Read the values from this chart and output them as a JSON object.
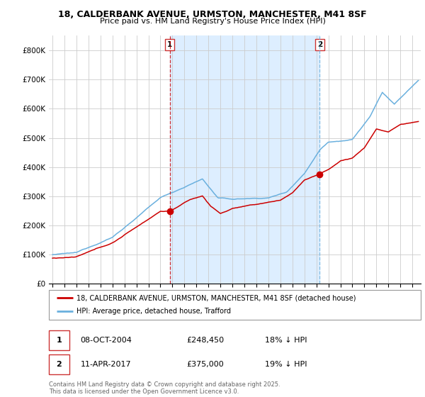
{
  "title1": "18, CALDERBANK AVENUE, URMSTON, MANCHESTER, M41 8SF",
  "title2": "Price paid vs. HM Land Registry's House Price Index (HPI)",
  "ylim": [
    0,
    850000
  ],
  "yticks": [
    0,
    100000,
    200000,
    300000,
    400000,
    500000,
    600000,
    700000,
    800000
  ],
  "ytick_labels": [
    "£0",
    "£100K",
    "£200K",
    "£300K",
    "£400K",
    "£500K",
    "£600K",
    "£700K",
    "£800K"
  ],
  "hpi_color": "#6ab0de",
  "price_color": "#cc0000",
  "sale1_year": 2004.78,
  "sale1_price": 248450,
  "sale2_year": 2017.28,
  "sale2_price": 375000,
  "shade_color": "#ddeeff",
  "legend_line1": "18, CALDERBANK AVENUE, URMSTON, MANCHESTER, M41 8SF (detached house)",
  "legend_line2": "HPI: Average price, detached house, Trafford",
  "footer": "Contains HM Land Registry data © Crown copyright and database right 2025.\nThis data is licensed under the Open Government Licence v3.0.",
  "xmin": 1994.7,
  "xmax": 2025.7
}
